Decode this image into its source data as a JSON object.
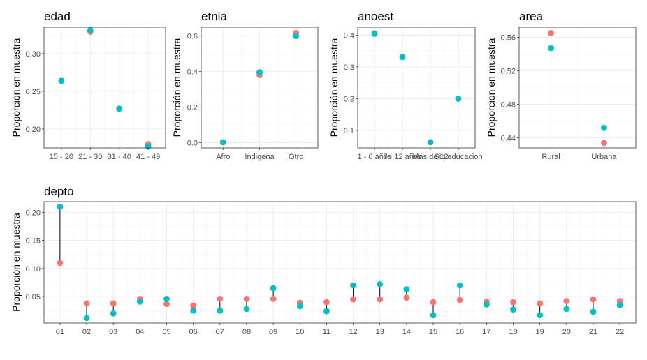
{
  "figure": {
    "point_colors": {
      "a": "#F8766D",
      "b": "#00BFC4"
    }
  },
  "chart_data": [
    {
      "type": "scatter",
      "title": "edad",
      "ylabel": "Proporción en muestra",
      "categories": [
        "15 - 20",
        "21 - 30",
        "31 - 40",
        "41 - 49"
      ],
      "series": [
        {
          "values": [
            0.264,
            0.329,
            0.227,
            0.18
          ]
        },
        {
          "values": [
            0.264,
            0.331,
            0.227,
            0.177
          ]
        }
      ],
      "ylim": [
        0.175,
        0.335
      ],
      "yticks": [
        0.2,
        0.25,
        0.3
      ],
      "ytick_labels": [
        "0.20",
        "0.25",
        "0.30"
      ],
      "grid": true
    },
    {
      "type": "scatter",
      "title": "etnia",
      "ylabel": "Proporción en muestra",
      "categories": [
        "Afro",
        "Indigena",
        "Otro"
      ],
      "series": [
        {
          "values": [
            0.002,
            0.38,
            0.618
          ]
        },
        {
          "values": [
            0.002,
            0.396,
            0.6
          ]
        }
      ],
      "ylim": [
        -0.03,
        0.65
      ],
      "yticks": [
        0.0,
        0.2,
        0.4,
        0.6
      ],
      "ytick_labels": [
        "0.0",
        "0.2",
        "0.4",
        "0.6"
      ],
      "grid": true
    },
    {
      "type": "scatter",
      "title": "anoest",
      "ylabel": "Proporción en muestra",
      "categories": [
        "1 - 6 años",
        "7 - 12 años",
        "Más de 12",
        "Sin educacion"
      ],
      "series": [
        {
          "values": [
            0.406,
            0.331,
            0.063,
            0.2
          ]
        },
        {
          "values": [
            0.404,
            0.331,
            0.063,
            0.2
          ]
        }
      ],
      "ylim": [
        0.045,
        0.425
      ],
      "yticks": [
        0.1,
        0.2,
        0.3,
        0.4
      ],
      "ytick_labels": [
        "0.1",
        "0.2",
        "0.3",
        "0.4"
      ],
      "grid": true
    },
    {
      "type": "scatter",
      "title": "area",
      "ylabel": "Proporción en muestra",
      "categories": [
        "Rural",
        "Urbana"
      ],
      "series": [
        {
          "values": [
            0.565,
            0.434
          ]
        },
        {
          "values": [
            0.547,
            0.452
          ]
        }
      ],
      "ylim": [
        0.428,
        0.572
      ],
      "yticks": [
        0.44,
        0.48,
        0.52,
        0.56
      ],
      "ytick_labels": [
        "0.44",
        "0.48",
        "0.52",
        "0.56"
      ],
      "grid": true
    },
    {
      "type": "scatter",
      "title": "depto",
      "ylabel": "Proporción en muestra",
      "categories": [
        "01",
        "02",
        "03",
        "04",
        "05",
        "06",
        "07",
        "08",
        "09",
        "10",
        "11",
        "12",
        "13",
        "14",
        "15",
        "16",
        "17",
        "18",
        "19",
        "20",
        "21",
        "22"
      ],
      "series": [
        {
          "values": [
            0.11,
            0.038,
            0.038,
            0.046,
            0.037,
            0.034,
            0.046,
            0.046,
            0.046,
            0.039,
            0.04,
            0.045,
            0.045,
            0.048,
            0.04,
            0.044,
            0.041,
            0.04,
            0.038,
            0.042,
            0.045,
            0.042
          ]
        },
        {
          "values": [
            0.21,
            0.012,
            0.02,
            0.041,
            0.046,
            0.025,
            0.025,
            0.028,
            0.065,
            0.033,
            0.024,
            0.07,
            0.072,
            0.063,
            0.017,
            0.07,
            0.036,
            0.027,
            0.017,
            0.028,
            0.023,
            0.035
          ]
        }
      ],
      "ylim": [
        0.003,
        0.219
      ],
      "yticks": [
        0.05,
        0.1,
        0.15,
        0.2
      ],
      "ytick_labels": [
        "0.05",
        "0.10",
        "0.15",
        "0.20"
      ],
      "grid": true
    }
  ]
}
